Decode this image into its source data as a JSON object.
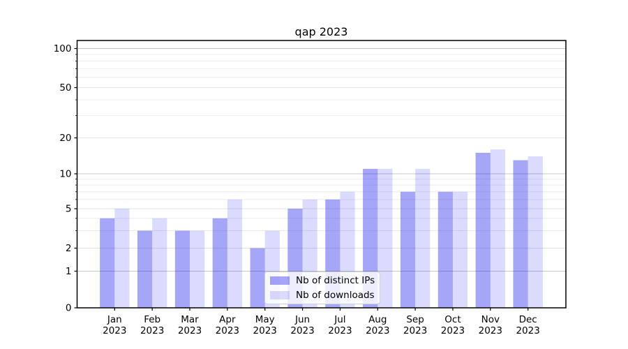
{
  "figure": {
    "title": "qap 2023"
  },
  "chart_data": {
    "type": "bar",
    "title": "qap 2023",
    "categories": [
      "Jan 2023",
      "Feb 2023",
      "Mar 2023",
      "Apr 2023",
      "May 2023",
      "Jun 2023",
      "Jul 2023",
      "Aug 2023",
      "Sep 2023",
      "Oct 2023",
      "Nov 2023",
      "Dec 2023"
    ],
    "category_months": [
      "Jan",
      "Feb",
      "Mar",
      "Apr",
      "May",
      "Jun",
      "Jul",
      "Aug",
      "Sep",
      "Oct",
      "Nov",
      "Dec"
    ],
    "category_year": "2023",
    "series": [
      {
        "name": "Nb of distinct IPs",
        "values": [
          4,
          3,
          3,
          4,
          2,
          5,
          6,
          11,
          7,
          7,
          15,
          13
        ],
        "color": "rgba(0,0,238,0.35)"
      },
      {
        "name": "Nb of downloads",
        "values": [
          5,
          4,
          3,
          6,
          3,
          6,
          7,
          11,
          11,
          7,
          16,
          14
        ],
        "color": "rgba(0,0,238,0.14)"
      }
    ],
    "xlabel": "",
    "ylabel": "",
    "yscale": "asinh-like (linear 0-1, quasi-log above)",
    "yticks_major": [
      0,
      1,
      2,
      5,
      10,
      20,
      50,
      100
    ],
    "yticks_decade": [
      1,
      10,
      100
    ],
    "yticks_minor": [
      3,
      4,
      6,
      7,
      8,
      9,
      30,
      40,
      60,
      70,
      80,
      90
    ],
    "ylim": [
      0,
      110
    ],
    "grid": true,
    "legend_position": "lower center"
  },
  "colors": {
    "bar_distinct_ips": "rgba(0,0,238,0.35)",
    "bar_downloads": "rgba(0,0,238,0.14)",
    "grid_decade": "#c8c8c8",
    "grid_labeled": "#e2e2e2",
    "grid_minor": "#ebebeb",
    "spine": "#000000",
    "tick_label": "#000000",
    "background": "#ffffff",
    "legend_border": "#d0d0d0"
  }
}
